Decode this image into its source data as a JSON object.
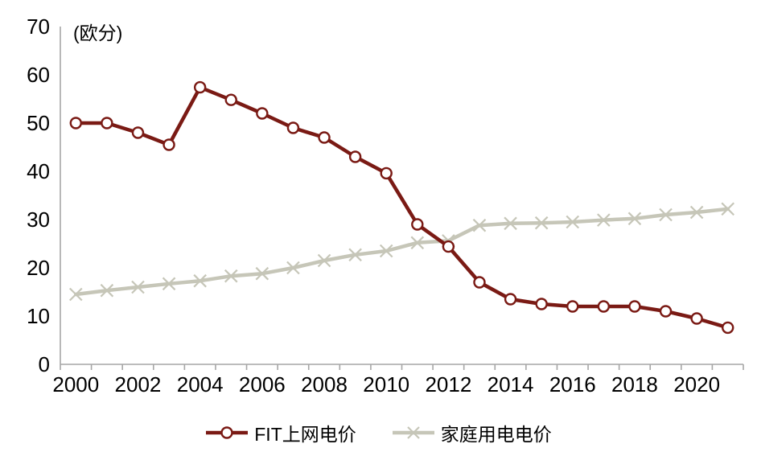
{
  "chart_data": {
    "type": "line",
    "title": "",
    "ylabel": "(欧分)",
    "xlabel": "",
    "ylim": [
      0,
      70
    ],
    "yticks": [
      0,
      10,
      20,
      30,
      40,
      50,
      60,
      70
    ],
    "x": [
      2000,
      2001,
      2002,
      2003,
      2004,
      2005,
      2006,
      2007,
      2008,
      2009,
      2010,
      2011,
      2012,
      2013,
      2014,
      2015,
      2016,
      2017,
      2018,
      2019,
      2020,
      2021
    ],
    "x_label_step": 2,
    "grid": false,
    "legend_position": "bottom-center",
    "axis_color": "#a6a6a6",
    "text_color": "#000000",
    "series": [
      {
        "name": "FIT上网电价",
        "marker": "circle",
        "color": "#7a1a14",
        "values": [
          50,
          50,
          48,
          45.5,
          57.4,
          54.8,
          52,
          49,
          47,
          43,
          39.6,
          29,
          24.4,
          17,
          13.5,
          12.5,
          12,
          12,
          12,
          11,
          9.5,
          7.6
        ]
      },
      {
        "name": "家庭用电电价",
        "marker": "x",
        "color": "#c6c6b8",
        "values": [
          14.5,
          15.3,
          16,
          16.7,
          17.3,
          18.3,
          18.8,
          20,
          21.5,
          22.7,
          23.5,
          25.2,
          25.6,
          28.8,
          29.2,
          29.3,
          29.5,
          29.9,
          30.2,
          31,
          31.5,
          32.2
        ]
      }
    ]
  }
}
